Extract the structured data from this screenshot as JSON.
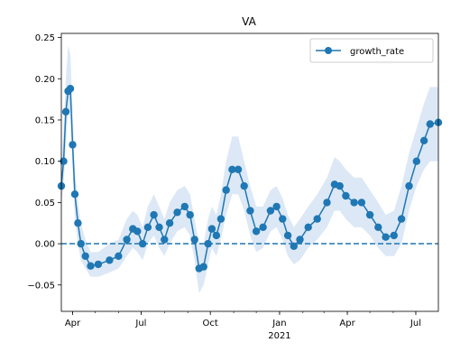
{
  "chart_data": {
    "type": "line",
    "title": "VA",
    "xlabel": "",
    "ylabel": "",
    "x_start": "2020-03-17",
    "x_end": "2021-07-31",
    "ylim": [
      -0.082,
      0.255
    ],
    "y_ticks": [
      -0.05,
      0.0,
      0.05,
      0.1,
      0.15,
      0.2,
      0.25
    ],
    "y_tick_labels": [
      "−0.05",
      "0.00",
      "0.05",
      "0.10",
      "0.15",
      "0.20",
      "0.25"
    ],
    "x_ticks": [
      {
        "date": "2020-04-01",
        "label": "Apr",
        "sublabel": ""
      },
      {
        "date": "2020-07-01",
        "label": "Jul",
        "sublabel": ""
      },
      {
        "date": "2020-10-01",
        "label": "Oct",
        "sublabel": ""
      },
      {
        "date": "2021-01-01",
        "label": "Jan",
        "sublabel": "2021"
      },
      {
        "date": "2021-04-01",
        "label": "Apr",
        "sublabel": ""
      },
      {
        "date": "2021-07-01",
        "label": "Jul",
        "sublabel": ""
      }
    ],
    "reference_line": {
      "y": 0.0,
      "style": "dashed",
      "color": "#1f77b4"
    },
    "grid": false,
    "legend": {
      "position": "top-right",
      "entries": [
        "growth_rate"
      ]
    },
    "series": [
      {
        "name": "growth_rate",
        "color": "#1f77b4",
        "marker": "circle",
        "band_color": "#dce8f5",
        "points": [
          {
            "x": "2020-03-17",
            "y": 0.07,
            "lo": 0.05,
            "hi": 0.09
          },
          {
            "x": "2020-03-20",
            "y": 0.1,
            "lo": 0.07,
            "hi": 0.14
          },
          {
            "x": "2020-03-23",
            "y": 0.16,
            "lo": 0.12,
            "hi": 0.2
          },
          {
            "x": "2020-03-26",
            "y": 0.185,
            "lo": 0.16,
            "hi": 0.24
          },
          {
            "x": "2020-03-29",
            "y": 0.188,
            "lo": 0.16,
            "hi": 0.23
          },
          {
            "x": "2020-04-01",
            "y": 0.12,
            "lo": 0.09,
            "hi": 0.16
          },
          {
            "x": "2020-04-04",
            "y": 0.06,
            "lo": 0.03,
            "hi": 0.09
          },
          {
            "x": "2020-04-08",
            "y": 0.025,
            "lo": 0.0,
            "hi": 0.05
          },
          {
            "x": "2020-04-12",
            "y": 0.0,
            "lo": -0.02,
            "hi": 0.025
          },
          {
            "x": "2020-04-18",
            "y": -0.015,
            "lo": -0.03,
            "hi": 0.005
          },
          {
            "x": "2020-04-25",
            "y": -0.027,
            "lo": -0.04,
            "hi": -0.01
          },
          {
            "x": "2020-05-05",
            "y": -0.025,
            "lo": -0.04,
            "hi": -0.01
          },
          {
            "x": "2020-05-20",
            "y": -0.02,
            "lo": -0.035,
            "hi": 0.0
          },
          {
            "x": "2020-06-01",
            "y": -0.015,
            "lo": -0.03,
            "hi": 0.005
          },
          {
            "x": "2020-06-12",
            "y": 0.005,
            "lo": -0.015,
            "hi": 0.03
          },
          {
            "x": "2020-06-20",
            "y": 0.018,
            "lo": -0.005,
            "hi": 0.04
          },
          {
            "x": "2020-06-26",
            "y": 0.015,
            "lo": -0.01,
            "hi": 0.035
          },
          {
            "x": "2020-07-03",
            "y": 0.0,
            "lo": -0.02,
            "hi": 0.02
          },
          {
            "x": "2020-07-10",
            "y": 0.02,
            "lo": 0.0,
            "hi": 0.045
          },
          {
            "x": "2020-07-18",
            "y": 0.035,
            "lo": 0.01,
            "hi": 0.06
          },
          {
            "x": "2020-07-25",
            "y": 0.02,
            "lo": -0.005,
            "hi": 0.045
          },
          {
            "x": "2020-08-01",
            "y": 0.005,
            "lo": -0.015,
            "hi": 0.03
          },
          {
            "x": "2020-08-08",
            "y": 0.025,
            "lo": 0.0,
            "hi": 0.05
          },
          {
            "x": "2020-08-18",
            "y": 0.038,
            "lo": 0.015,
            "hi": 0.065
          },
          {
            "x": "2020-08-28",
            "y": 0.045,
            "lo": 0.02,
            "hi": 0.07
          },
          {
            "x": "2020-09-04",
            "y": 0.035,
            "lo": 0.01,
            "hi": 0.06
          },
          {
            "x": "2020-09-10",
            "y": 0.005,
            "lo": -0.02,
            "hi": 0.03
          },
          {
            "x": "2020-09-16",
            "y": -0.03,
            "lo": -0.06,
            "hi": 0.0
          },
          {
            "x": "2020-09-22",
            "y": -0.028,
            "lo": -0.05,
            "hi": 0.0
          },
          {
            "x": "2020-09-28",
            "y": 0.0,
            "lo": -0.025,
            "hi": 0.03
          },
          {
            "x": "2020-10-03",
            "y": 0.018,
            "lo": -0.005,
            "hi": 0.045
          },
          {
            "x": "2020-10-09",
            "y": 0.01,
            "lo": -0.015,
            "hi": 0.035
          },
          {
            "x": "2020-10-15",
            "y": 0.03,
            "lo": 0.005,
            "hi": 0.06
          },
          {
            "x": "2020-10-22",
            "y": 0.065,
            "lo": 0.035,
            "hi": 0.1
          },
          {
            "x": "2020-10-30",
            "y": 0.09,
            "lo": 0.06,
            "hi": 0.13
          },
          {
            "x": "2020-11-07",
            "y": 0.09,
            "lo": 0.06,
            "hi": 0.13
          },
          {
            "x": "2020-11-15",
            "y": 0.07,
            "lo": 0.04,
            "hi": 0.1
          },
          {
            "x": "2020-11-23",
            "y": 0.04,
            "lo": 0.01,
            "hi": 0.07
          },
          {
            "x": "2020-12-01",
            "y": 0.015,
            "lo": -0.01,
            "hi": 0.045
          },
          {
            "x": "2020-12-10",
            "y": 0.02,
            "lo": -0.005,
            "hi": 0.045
          },
          {
            "x": "2020-12-20",
            "y": 0.04,
            "lo": 0.015,
            "hi": 0.065
          },
          {
            "x": "2020-12-28",
            "y": 0.045,
            "lo": 0.02,
            "hi": 0.07
          },
          {
            "x": "2021-01-05",
            "y": 0.03,
            "lo": 0.005,
            "hi": 0.055
          },
          {
            "x": "2021-01-12",
            "y": 0.01,
            "lo": -0.015,
            "hi": 0.035
          },
          {
            "x": "2021-01-20",
            "y": -0.003,
            "lo": -0.025,
            "hi": 0.02
          },
          {
            "x": "2021-01-28",
            "y": 0.005,
            "lo": -0.02,
            "hi": 0.03
          },
          {
            "x": "2021-02-08",
            "y": 0.02,
            "lo": -0.005,
            "hi": 0.045
          },
          {
            "x": "2021-02-20",
            "y": 0.03,
            "lo": 0.005,
            "hi": 0.06
          },
          {
            "x": "2021-03-05",
            "y": 0.05,
            "lo": 0.02,
            "hi": 0.08
          },
          {
            "x": "2021-03-15",
            "y": 0.072,
            "lo": 0.04,
            "hi": 0.105
          },
          {
            "x": "2021-03-22",
            "y": 0.07,
            "lo": 0.04,
            "hi": 0.1
          },
          {
            "x": "2021-03-30",
            "y": 0.058,
            "lo": 0.03,
            "hi": 0.09
          },
          {
            "x": "2021-04-10",
            "y": 0.05,
            "lo": 0.02,
            "hi": 0.08
          },
          {
            "x": "2021-04-20",
            "y": 0.05,
            "lo": 0.02,
            "hi": 0.08
          },
          {
            "x": "2021-05-01",
            "y": 0.035,
            "lo": 0.01,
            "hi": 0.065
          },
          {
            "x": "2021-05-12",
            "y": 0.02,
            "lo": -0.005,
            "hi": 0.05
          },
          {
            "x": "2021-05-22",
            "y": 0.008,
            "lo": -0.015,
            "hi": 0.035
          },
          {
            "x": "2021-06-02",
            "y": 0.01,
            "lo": -0.015,
            "hi": 0.04
          },
          {
            "x": "2021-06-12",
            "y": 0.03,
            "lo": 0.0,
            "hi": 0.07
          },
          {
            "x": "2021-06-22",
            "y": 0.07,
            "lo": 0.04,
            "hi": 0.11
          },
          {
            "x": "2021-07-02",
            "y": 0.1,
            "lo": 0.07,
            "hi": 0.14
          },
          {
            "x": "2021-07-12",
            "y": 0.125,
            "lo": 0.09,
            "hi": 0.17
          },
          {
            "x": "2021-07-20",
            "y": 0.145,
            "lo": 0.1,
            "hi": 0.19
          },
          {
            "x": "2021-07-31",
            "y": 0.147,
            "lo": 0.1,
            "hi": 0.19
          }
        ]
      }
    ]
  }
}
